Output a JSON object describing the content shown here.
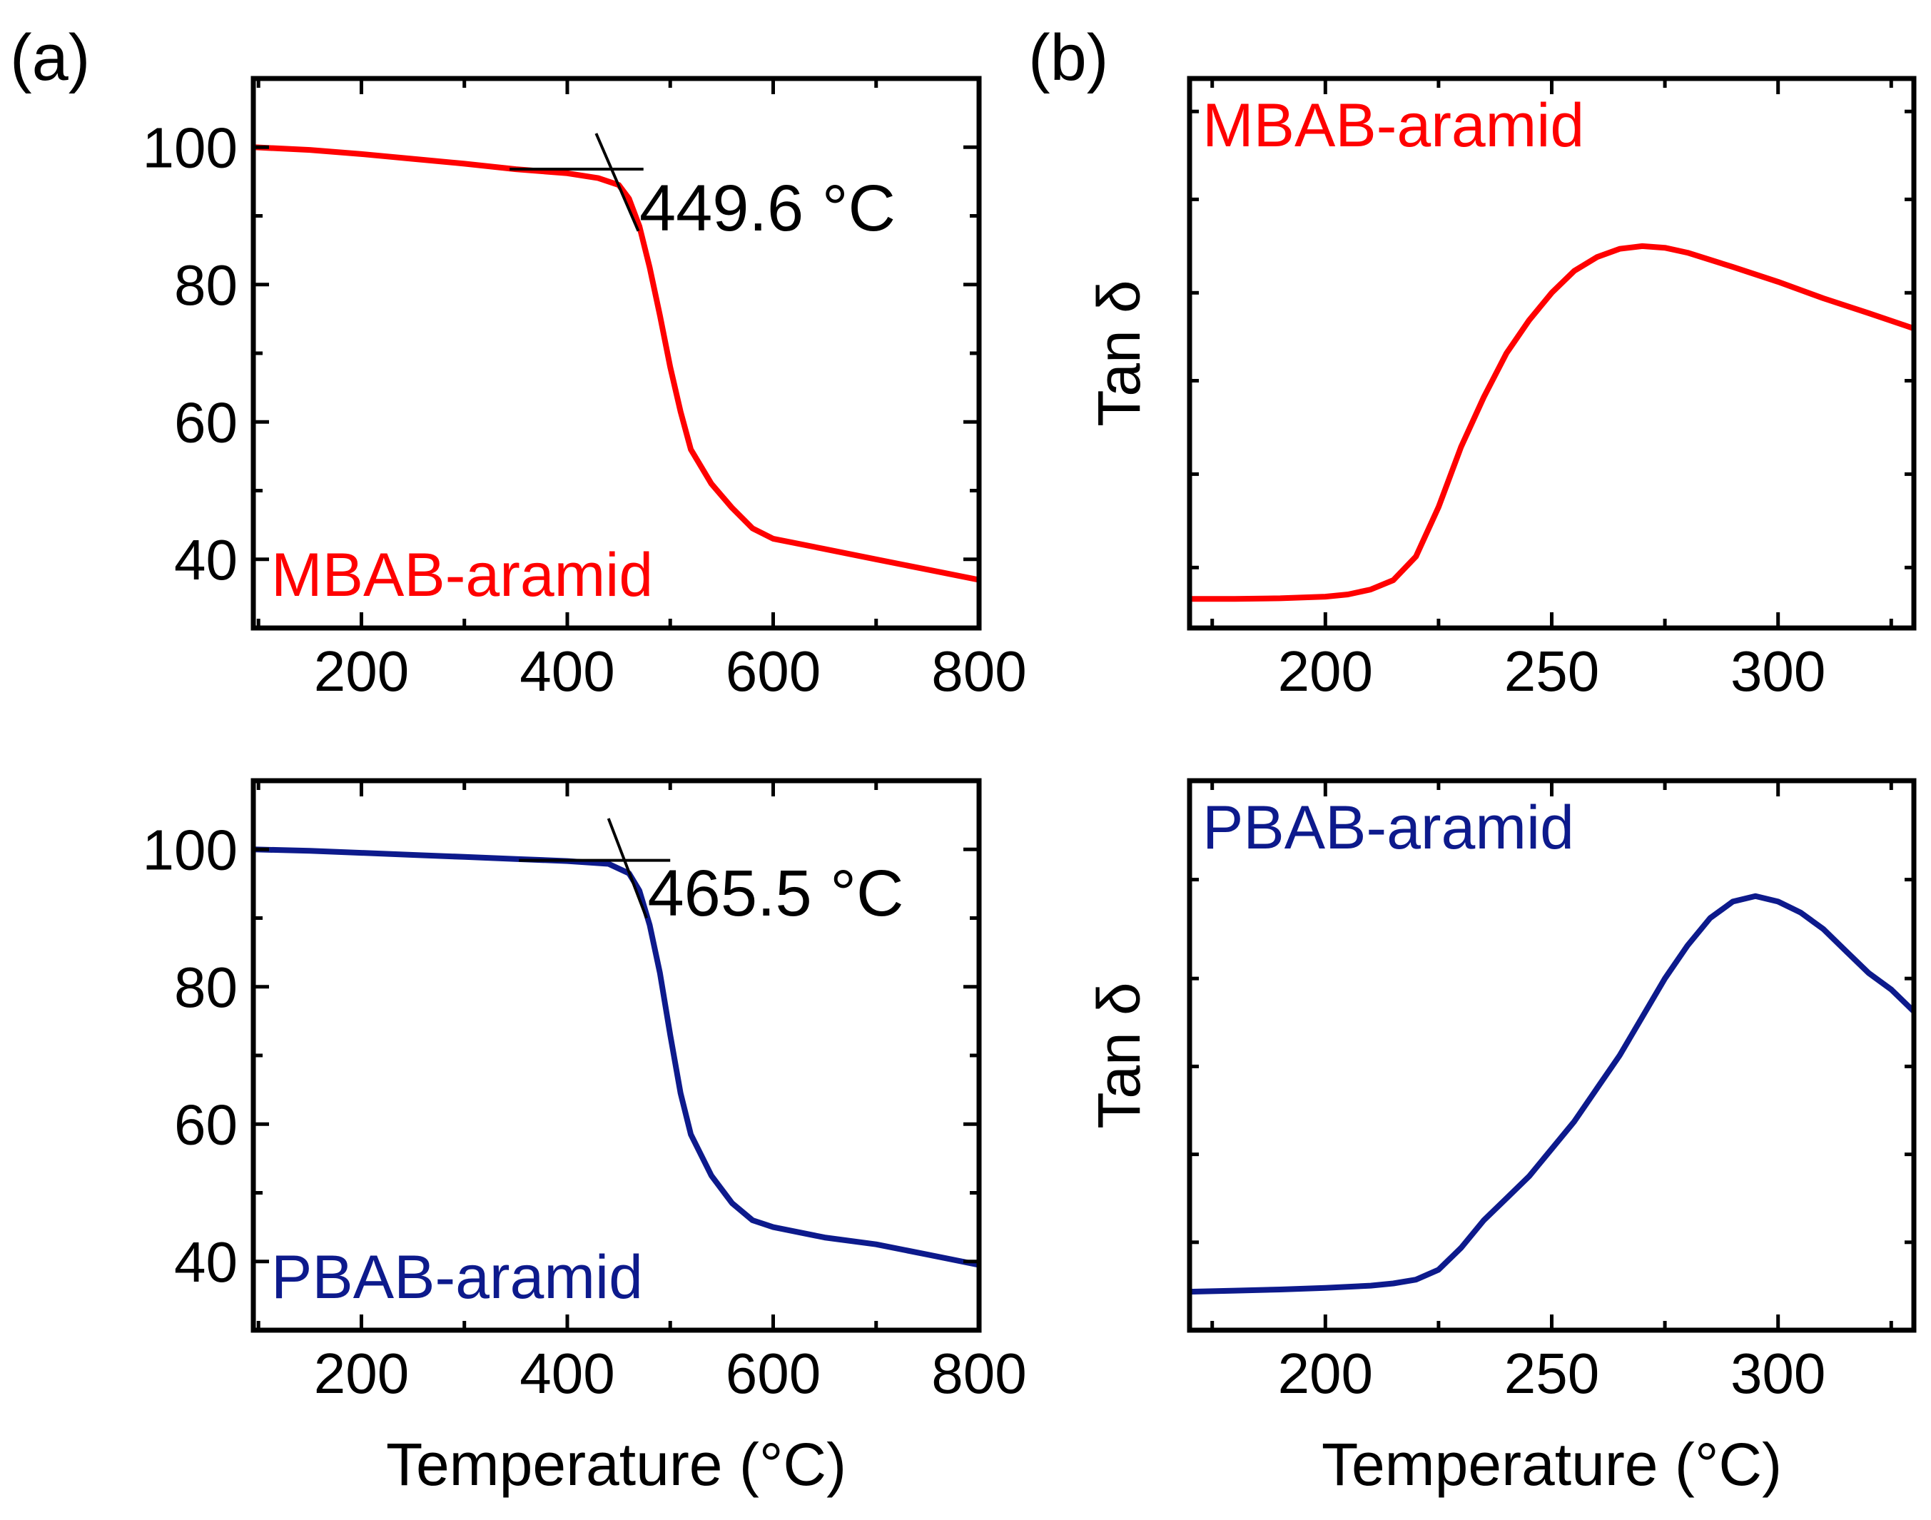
{
  "figure": {
    "panel_labels": [
      "(a)",
      "(b)"
    ],
    "colors": {
      "mbab": "#ff0000",
      "pbab": "#0d1a8c",
      "axis": "#000000"
    }
  },
  "chart_data": [
    {
      "id": "a-top",
      "type": "line",
      "panel": "(a)",
      "xlabel": "",
      "ylabel": "",
      "xlim": [
        95,
        800
      ],
      "ylim": [
        30,
        110
      ],
      "xticks": [
        200,
        400,
        600,
        800
      ],
      "yticks": [
        40,
        60,
        80,
        100
      ],
      "legend": "MBAB-aramid",
      "legend_position": "bottom-left",
      "series": [
        {
          "name": "MBAB-aramid",
          "color": "#ff0000",
          "x": [
            95,
            150,
            200,
            250,
            300,
            350,
            400,
            430,
            450,
            460,
            470,
            480,
            490,
            500,
            510,
            520,
            540,
            560,
            580,
            600,
            650,
            700,
            750,
            800
          ],
          "y": [
            100,
            99.6,
            99.0,
            98.3,
            97.6,
            96.8,
            96.2,
            95.5,
            94.5,
            92.5,
            88.5,
            82.5,
            75.5,
            68,
            61.5,
            56,
            51,
            47.5,
            44.5,
            43,
            41.5,
            40,
            38.5,
            37
          ]
        }
      ],
      "tangent_lines": [
        {
          "x": [
            344,
            474
          ],
          "y": [
            96.8,
            96.8
          ]
        },
        {
          "x": [
            428,
            469
          ],
          "y": [
            102,
            87.8
          ]
        }
      ],
      "annotations": [
        {
          "text": "449.6 °C",
          "x": 470,
          "y": 91
        }
      ]
    },
    {
      "id": "a-bottom",
      "type": "line",
      "panel": "",
      "xlabel": "Temperature (°C)",
      "ylabel": "",
      "xlim": [
        95,
        800
      ],
      "ylim": [
        30,
        110
      ],
      "xticks": [
        200,
        400,
        600,
        800
      ],
      "yticks": [
        40,
        60,
        80,
        100
      ],
      "legend": "PBAB-aramid",
      "legend_position": "bottom-left",
      "series": [
        {
          "name": "PBAB-aramid",
          "color": "#0d1a8c",
          "x": [
            95,
            150,
            200,
            250,
            300,
            350,
            400,
            440,
            460,
            470,
            480,
            490,
            500,
            510,
            520,
            540,
            560,
            580,
            600,
            650,
            700,
            750,
            800
          ],
          "y": [
            100,
            99.8,
            99.5,
            99.2,
            98.9,
            98.6,
            98.3,
            97.9,
            96.5,
            94,
            89,
            82,
            73,
            64.5,
            58.5,
            52.5,
            48.5,
            46,
            45,
            43.5,
            42.5,
            41,
            39.5
          ]
        }
      ],
      "tangent_lines": [
        {
          "x": [
            353,
            500
          ],
          "y": [
            98.4,
            98.4
          ]
        },
        {
          "x": [
            440,
            477
          ],
          "y": [
            104.5,
            90
          ]
        }
      ],
      "annotations": [
        {
          "text": "465.5 °C",
          "x": 478,
          "y": 93.5
        }
      ]
    },
    {
      "id": "b-top",
      "type": "line",
      "panel": "(b)",
      "xlabel": "",
      "ylabel": "Tan δ",
      "xlim": [
        170,
        330
      ],
      "ylim": [
        0,
        1
      ],
      "xticks": [
        200,
        250,
        300
      ],
      "xtick_minor": [
        175,
        225,
        275,
        325
      ],
      "ytick_marks": [
        0.11,
        0.28,
        0.45,
        0.61,
        0.78,
        0.94
      ],
      "legend": "MBAB-aramid",
      "legend_position": "top-left",
      "series": [
        {
          "name": "MBAB-aramid",
          "color": "#ff0000",
          "x": [
            170,
            180,
            190,
            200,
            205,
            210,
            215,
            220,
            225,
            230,
            235,
            240,
            245,
            250,
            255,
            260,
            265,
            270,
            275,
            280,
            290,
            300,
            310,
            320,
            330
          ],
          "y": [
            0.053,
            0.053,
            0.054,
            0.057,
            0.061,
            0.07,
            0.087,
            0.13,
            0.22,
            0.33,
            0.42,
            0.5,
            0.56,
            0.61,
            0.65,
            0.675,
            0.69,
            0.695,
            0.692,
            0.683,
            0.657,
            0.63,
            0.6,
            0.573,
            0.545
          ]
        }
      ]
    },
    {
      "id": "b-bottom",
      "type": "line",
      "panel": "",
      "xlabel": "Temperature (°C)",
      "ylabel": "Tan δ",
      "xlim": [
        170,
        330
      ],
      "ylim": [
        0,
        1
      ],
      "xticks": [
        200,
        250,
        300
      ],
      "xtick_minor": [
        175,
        225,
        275,
        325
      ],
      "ytick_marks": [
        0.16,
        0.32,
        0.48,
        0.64,
        0.82
      ],
      "legend": "PBAB-aramid",
      "legend_position": "top-left",
      "series": [
        {
          "name": "PBAB-aramid",
          "color": "#0d1a8c",
          "x": [
            170,
            180,
            190,
            200,
            210,
            215,
            220,
            225,
            230,
            235,
            240,
            245,
            250,
            255,
            260,
            265,
            270,
            275,
            280,
            285,
            290,
            295,
            300,
            305,
            310,
            315,
            320,
            325,
            330
          ],
          "y": [
            0.07,
            0.072,
            0.074,
            0.077,
            0.081,
            0.085,
            0.092,
            0.11,
            0.15,
            0.2,
            0.24,
            0.28,
            0.33,
            0.38,
            0.44,
            0.5,
            0.57,
            0.64,
            0.7,
            0.75,
            0.78,
            0.79,
            0.78,
            0.76,
            0.73,
            0.69,
            0.65,
            0.62,
            0.58
          ]
        }
      ]
    }
  ]
}
